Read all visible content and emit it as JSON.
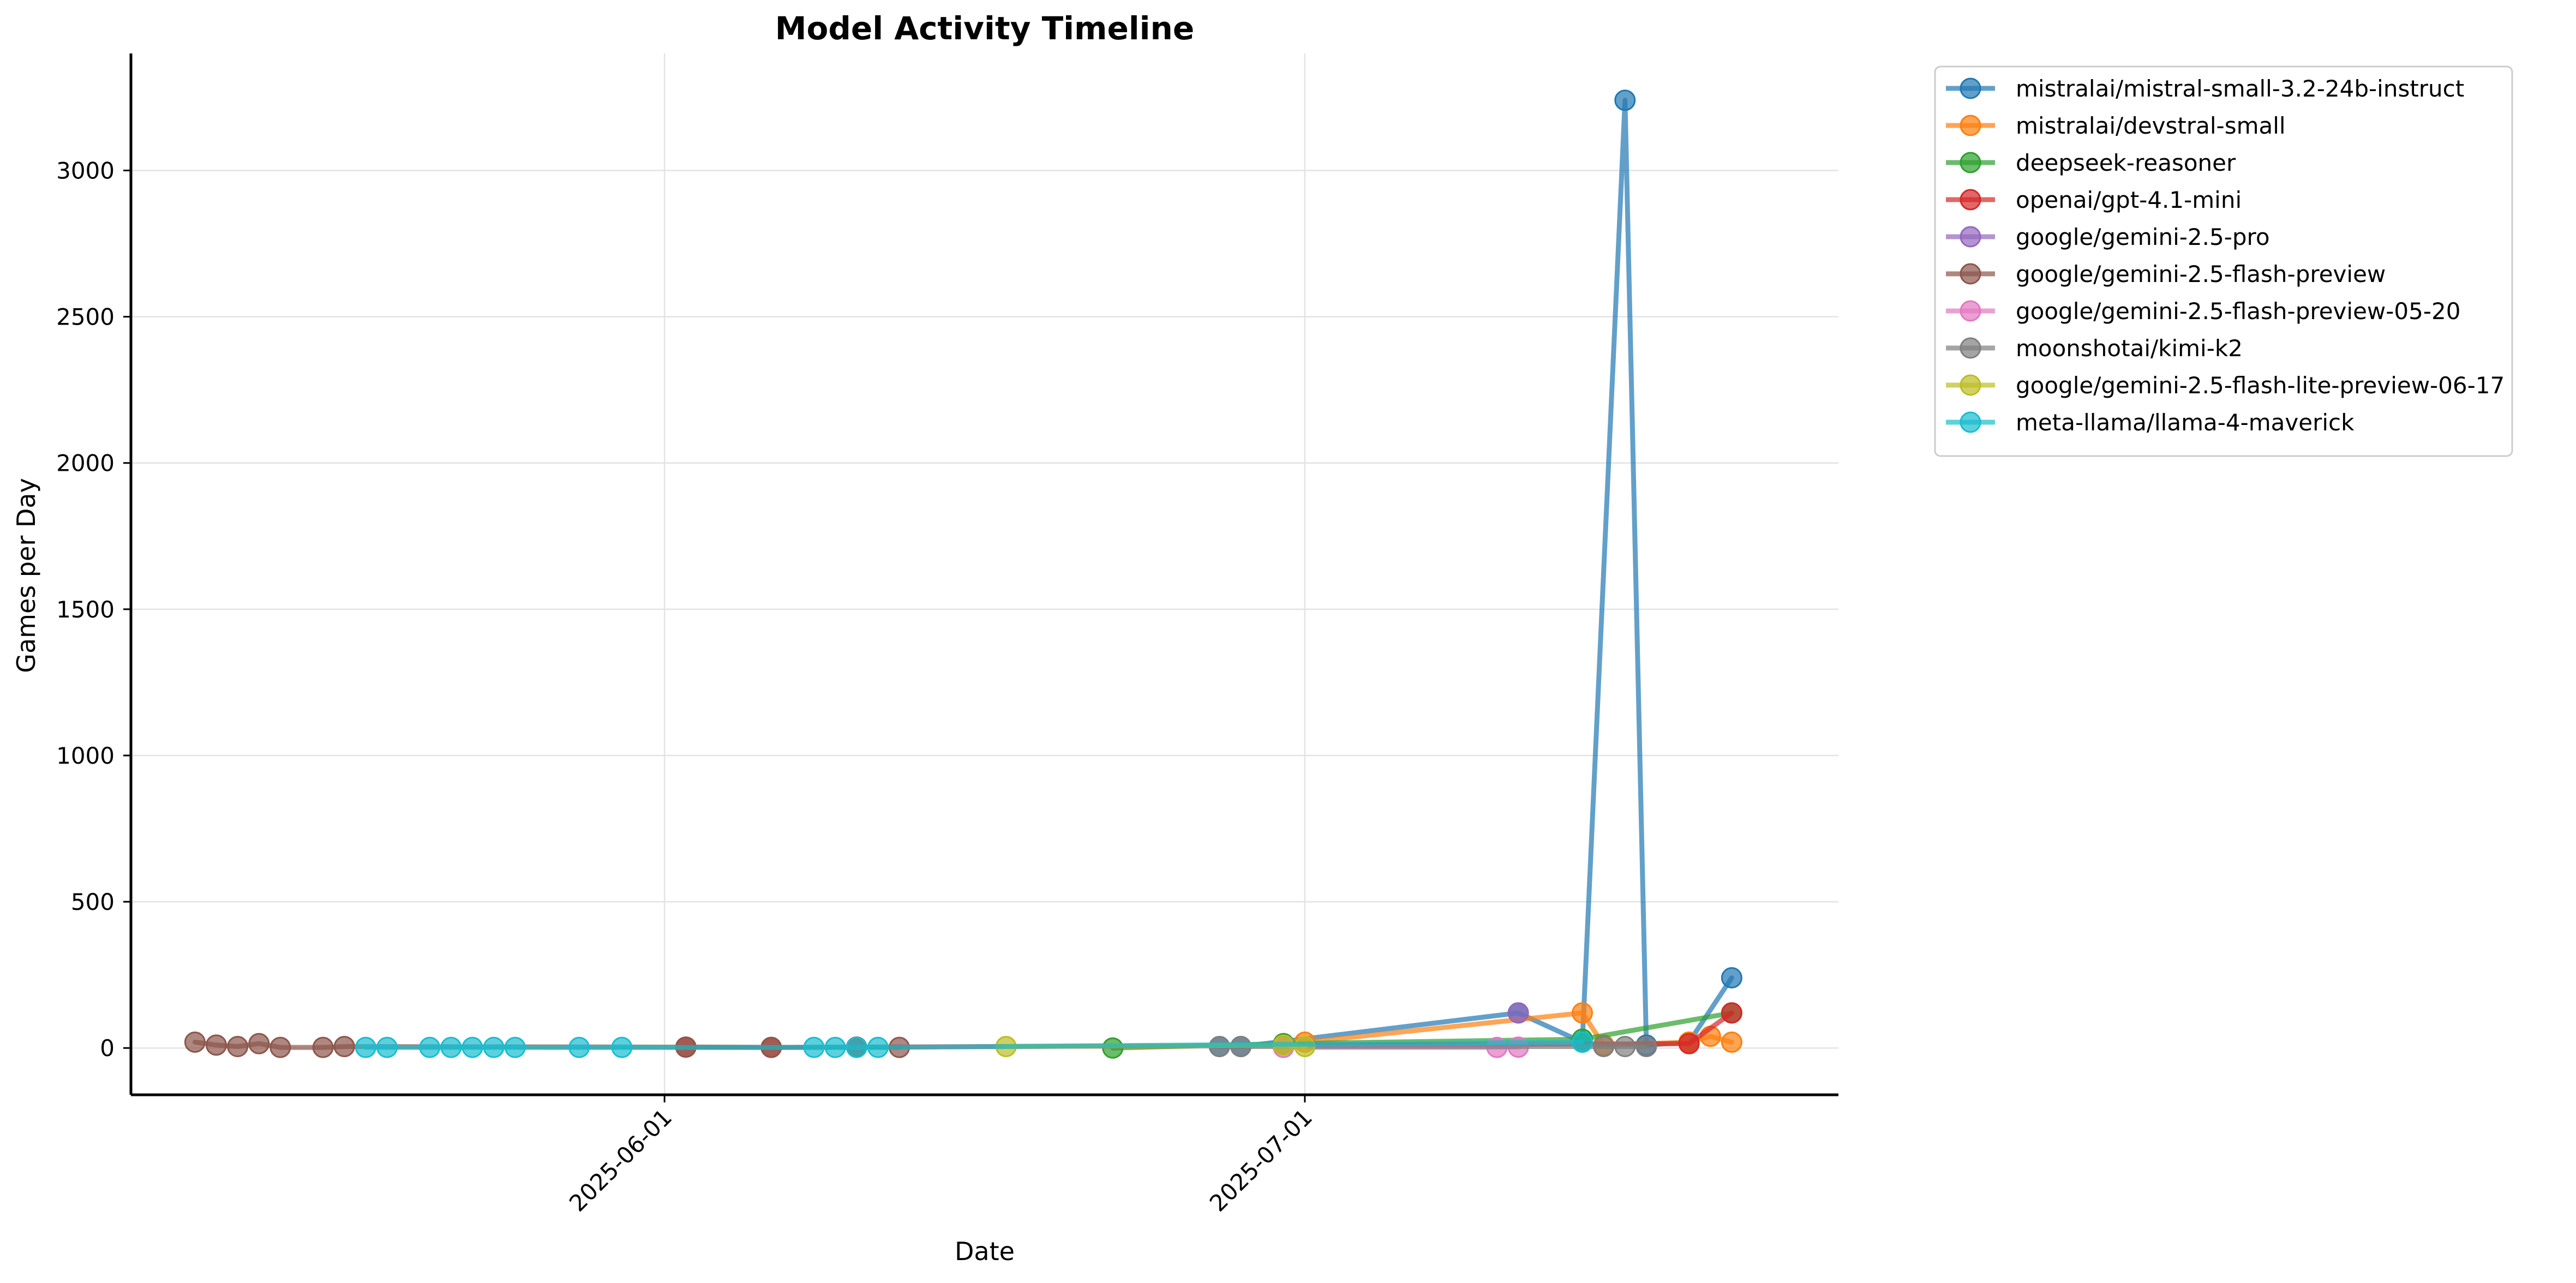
{
  "chart_data": {
    "type": "line",
    "title": "Model Activity Timeline",
    "xlabel": "Date",
    "ylabel": "Games per Day",
    "xlim": [
      "2025-05-07",
      "2025-07-26"
    ],
    "ylim": [
      -160,
      3400
    ],
    "x_ticks": [
      "2025-06-01",
      "2025-07-01"
    ],
    "y_ticks": [
      0,
      500,
      1000,
      1500,
      2000,
      2500,
      3000
    ],
    "grid": true,
    "legend_position": "outside upper right",
    "series": [
      {
        "name": "mistralai/mistral-small-3.2-24b-instruct",
        "color": "#1f77b4",
        "points": [
          [
            "2025-06-27",
            5
          ],
          [
            "2025-06-28",
            5
          ],
          [
            "2025-07-11",
            120
          ],
          [
            "2025-07-14",
            20
          ],
          [
            "2025-07-16",
            3240
          ],
          [
            "2025-07-17",
            10
          ],
          [
            "2025-07-19",
            20
          ],
          [
            "2025-07-21",
            240
          ]
        ]
      },
      {
        "name": "mistralai/devstral-small",
        "color": "#ff7f0e",
        "points": [
          [
            "2025-06-30",
            15
          ],
          [
            "2025-07-01",
            20
          ],
          [
            "2025-07-14",
            120
          ],
          [
            "2025-07-15",
            10
          ],
          [
            "2025-07-19",
            20
          ],
          [
            "2025-07-20",
            40
          ],
          [
            "2025-07-21",
            20
          ]
        ]
      },
      {
        "name": "deepseek-reasoner",
        "color": "#2ca02c",
        "points": [
          [
            "2025-06-22",
            0
          ],
          [
            "2025-06-30",
            15
          ],
          [
            "2025-07-14",
            30
          ],
          [
            "2025-07-21",
            120
          ]
        ]
      },
      {
        "name": "openai/gpt-4.1-mini",
        "color": "#d62728",
        "points": [
          [
            "2025-06-02",
            3
          ],
          [
            "2025-06-06",
            2
          ],
          [
            "2025-06-10",
            3
          ],
          [
            "2025-07-19",
            15
          ],
          [
            "2025-07-21",
            120
          ]
        ]
      },
      {
        "name": "google/gemini-2.5-pro",
        "color": "#9467bd",
        "points": [
          [
            "2025-07-11",
            120
          ]
        ]
      },
      {
        "name": "google/gemini-2.5-flash-preview",
        "color": "#8c564b",
        "points": [
          [
            "2025-05-10",
            20
          ],
          [
            "2025-05-11",
            10
          ],
          [
            "2025-05-12",
            5
          ],
          [
            "2025-05-13",
            15
          ],
          [
            "2025-05-14",
            2
          ],
          [
            "2025-05-16",
            2
          ],
          [
            "2025-05-17",
            5
          ],
          [
            "2025-06-02",
            3
          ],
          [
            "2025-06-06",
            2
          ],
          [
            "2025-06-10",
            3
          ],
          [
            "2025-06-12",
            2
          ]
        ]
      },
      {
        "name": "google/gemini-2.5-flash-preview-05-20",
        "color": "#e377c2",
        "points": [
          [
            "2025-06-30",
            2
          ],
          [
            "2025-07-10",
            2
          ],
          [
            "2025-07-11",
            3
          ]
        ]
      },
      {
        "name": "moonshotai/kimi-k2",
        "color": "#7f7f7f",
        "points": [
          [
            "2025-06-27",
            5
          ],
          [
            "2025-06-28",
            5
          ],
          [
            "2025-07-15",
            5
          ],
          [
            "2025-07-16",
            5
          ],
          [
            "2025-07-17",
            5
          ]
        ]
      },
      {
        "name": "google/gemini-2.5-flash-lite-preview-06-17",
        "color": "#bcbd22",
        "points": [
          [
            "2025-06-17",
            5
          ],
          [
            "2025-06-30",
            10
          ],
          [
            "2025-07-01",
            5
          ]
        ]
      },
      {
        "name": "meta-llama/llama-4-maverick",
        "color": "#17becf",
        "points": [
          [
            "2025-05-18",
            2
          ],
          [
            "2025-05-19",
            2
          ],
          [
            "2025-05-21",
            2
          ],
          [
            "2025-05-22",
            2
          ],
          [
            "2025-05-23",
            2
          ],
          [
            "2025-05-24",
            2
          ],
          [
            "2025-05-25",
            2
          ],
          [
            "2025-05-28",
            2
          ],
          [
            "2025-05-30",
            2
          ],
          [
            "2025-06-08",
            2
          ],
          [
            "2025-06-09",
            2
          ],
          [
            "2025-06-10",
            2
          ],
          [
            "2025-06-11",
            2
          ],
          [
            "2025-07-14",
            20
          ]
        ]
      }
    ]
  }
}
